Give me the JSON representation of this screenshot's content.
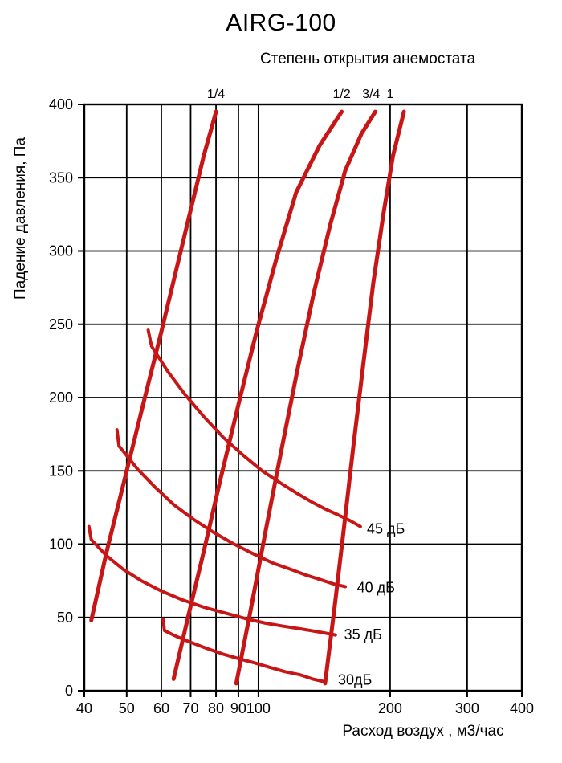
{
  "chart_data": {
    "type": "line",
    "title": "AIRG-100",
    "subtitle": "Степень открытия анемостата",
    "xlabel": "Расход воздух , м3/час",
    "ylabel": "Падение давления, Па",
    "x_scale": "log",
    "y_scale": "linear",
    "xlim": [
      40,
      400
    ],
    "ylim": [
      0,
      400
    ],
    "x_ticks": [
      40,
      50,
      60,
      70,
      80,
      90,
      100,
      200,
      300,
      400
    ],
    "y_ticks": [
      0,
      50,
      100,
      150,
      200,
      250,
      300,
      350,
      400
    ],
    "grid": true,
    "grid_color": "#000000",
    "curve_color": "#c81616",
    "top_labels": [
      {
        "text": "1/4",
        "x": 80
      },
      {
        "text": "1/2",
        "x": 155
      },
      {
        "text": "3/4",
        "x": 181
      },
      {
        "text": "1",
        "x": 200
      }
    ],
    "opening_series": [
      {
        "name": "1/4",
        "points": [
          [
            41.5,
            48
          ],
          [
            45,
            95
          ],
          [
            50,
            150
          ],
          [
            55,
            200
          ],
          [
            60,
            245
          ],
          [
            65,
            288
          ],
          [
            70,
            328
          ],
          [
            75,
            365
          ],
          [
            80,
            395
          ]
        ]
      },
      {
        "name": "1/2",
        "points": [
          [
            64,
            8
          ],
          [
            69,
            50
          ],
          [
            75,
            95
          ],
          [
            82,
            145
          ],
          [
            90,
            195
          ],
          [
            99,
            245
          ],
          [
            110,
            295
          ],
          [
            122,
            340
          ],
          [
            138,
            372
          ],
          [
            155,
            395
          ]
        ]
      },
      {
        "name": "3/4",
        "points": [
          [
            89,
            5
          ],
          [
            96,
            55
          ],
          [
            104,
            110
          ],
          [
            113,
            165
          ],
          [
            123,
            220
          ],
          [
            134,
            272
          ],
          [
            146,
            318
          ],
          [
            158,
            355
          ],
          [
            172,
            380
          ],
          [
            185,
            395
          ]
        ]
      },
      {
        "name": "1",
        "points": [
          [
            142,
            5
          ],
          [
            149,
            55
          ],
          [
            157,
            112
          ],
          [
            165,
            168
          ],
          [
            174,
            225
          ],
          [
            183,
            278
          ],
          [
            193,
            325
          ],
          [
            203,
            365
          ],
          [
            215,
            395
          ]
        ]
      }
    ],
    "noise_series": [
      {
        "name": "45 дБ",
        "label_at": [
          177,
          107
        ],
        "points": [
          [
            56,
            246
          ],
          [
            57,
            235
          ],
          [
            62,
            218
          ],
          [
            68,
            202
          ],
          [
            75,
            187
          ],
          [
            83,
            173
          ],
          [
            92,
            161
          ],
          [
            102,
            150
          ],
          [
            112,
            142
          ],
          [
            122,
            135
          ],
          [
            132,
            129
          ],
          [
            142,
            124
          ],
          [
            152,
            120
          ],
          [
            162,
            116
          ],
          [
            171,
            112
          ]
        ]
      },
      {
        "name": "40 дБ",
        "label_at": [
          168,
          67
        ],
        "points": [
          [
            47.5,
            178
          ],
          [
            48,
            167
          ],
          [
            53,
            151
          ],
          [
            58,
            139
          ],
          [
            64,
            127
          ],
          [
            71,
            117
          ],
          [
            79,
            108
          ],
          [
            88,
            100
          ],
          [
            98,
            93
          ],
          [
            108,
            87
          ],
          [
            118,
            83
          ],
          [
            128,
            79
          ],
          [
            138,
            76
          ],
          [
            148,
            73
          ],
          [
            158,
            71
          ]
        ]
      },
      {
        "name": "35 дБ",
        "label_at": [
          157,
          35
        ],
        "points": [
          [
            41,
            112
          ],
          [
            41.5,
            103
          ],
          [
            45,
            92
          ],
          [
            49,
            83
          ],
          [
            54,
            75
          ],
          [
            60,
            68
          ],
          [
            67,
            62
          ],
          [
            75,
            57
          ],
          [
            84,
            53
          ],
          [
            94,
            49
          ],
          [
            104,
            46
          ],
          [
            114,
            44
          ],
          [
            126,
            42
          ],
          [
            138,
            40
          ],
          [
            150,
            38
          ]
        ]
      },
      {
        "name": "30дБ",
        "label_at": [
          152,
          4
        ],
        "points": [
          [
            60.5,
            49
          ],
          [
            61,
            41
          ],
          [
            65,
            37
          ],
          [
            70,
            33
          ],
          [
            76,
            29
          ],
          [
            83,
            25
          ],
          [
            90,
            22
          ],
          [
            98,
            19
          ],
          [
            106,
            16
          ],
          [
            115,
            13
          ],
          [
            124,
            11
          ],
          [
            133,
            8
          ],
          [
            142,
            6
          ]
        ]
      }
    ]
  }
}
